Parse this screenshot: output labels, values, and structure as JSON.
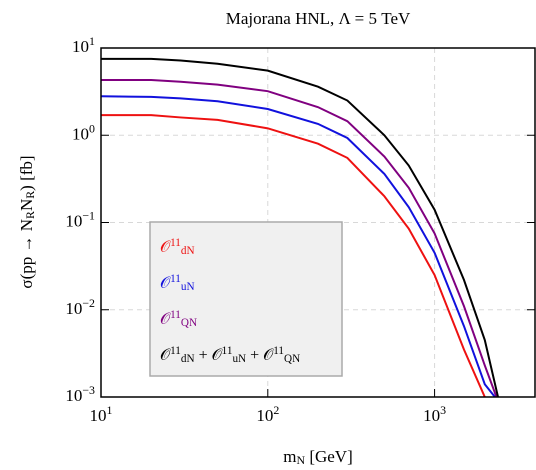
{
  "chart_data": {
    "type": "line",
    "title": "Majorana HNL,   Λ = 5 TeV",
    "xlabel": "m_{N} [GeV]",
    "ylabel": "σ(pp → N_{R}N_{R}) [fb]",
    "xscale": "log",
    "yscale": "log",
    "grid": true,
    "legend": "lower left",
    "xlim": [
      10,
      4000
    ],
    "ylim": [
      0.001,
      10
    ],
    "xticks": [
      {
        "value": 10,
        "label": "10^{1}"
      },
      {
        "value": 100,
        "label": "10^{2}"
      },
      {
        "value": 1000,
        "label": "10^{3}"
      }
    ],
    "yticks": [
      {
        "value": 0.001,
        "label": "10^{−3}"
      },
      {
        "value": 0.01,
        "label": "10^{−2}"
      },
      {
        "value": 0.1,
        "label": "10^{−1}"
      },
      {
        "value": 1,
        "label": "10^{0}"
      },
      {
        "value": 10,
        "label": "10^{1}"
      }
    ],
    "series": [
      {
        "name": "𝒪^{11}_{dN}",
        "color": "#ee1111",
        "x": [
          10,
          20,
          30,
          50,
          100,
          200,
          300,
          500,
          700,
          1000,
          1500,
          2000
        ],
        "values": [
          1.7,
          1.7,
          1.6,
          1.5,
          1.2,
          0.8,
          0.55,
          0.2,
          0.085,
          0.025,
          0.0035,
          0.001
        ]
      },
      {
        "name": "𝒪^{11}_{uN}",
        "color": "#1111dd",
        "x": [
          10,
          20,
          30,
          50,
          100,
          200,
          300,
          500,
          700,
          1000,
          1500,
          2000,
          2300
        ],
        "values": [
          2.8,
          2.75,
          2.65,
          2.45,
          2.0,
          1.35,
          0.93,
          0.36,
          0.15,
          0.045,
          0.0065,
          0.0014,
          0.001
        ]
      },
      {
        "name": "𝒪^{11}_{QN}",
        "color": "#800080",
        "x": [
          10,
          20,
          30,
          50,
          100,
          200,
          300,
          500,
          700,
          1000,
          1500,
          2000,
          2350
        ],
        "values": [
          4.3,
          4.3,
          4.1,
          3.8,
          3.2,
          2.1,
          1.45,
          0.57,
          0.25,
          0.075,
          0.011,
          0.0023,
          0.001
        ]
      },
      {
        "name": "𝒪^{11}_{dN} + 𝒪^{11}_{uN} + 𝒪^{11}_{QN}",
        "color": "#000000",
        "x": [
          10,
          20,
          30,
          50,
          100,
          200,
          300,
          500,
          700,
          1000,
          1500,
          2000,
          2400
        ],
        "values": [
          7.5,
          7.5,
          7.2,
          6.6,
          5.5,
          3.6,
          2.5,
          1.0,
          0.45,
          0.14,
          0.022,
          0.0045,
          0.001
        ]
      }
    ]
  }
}
